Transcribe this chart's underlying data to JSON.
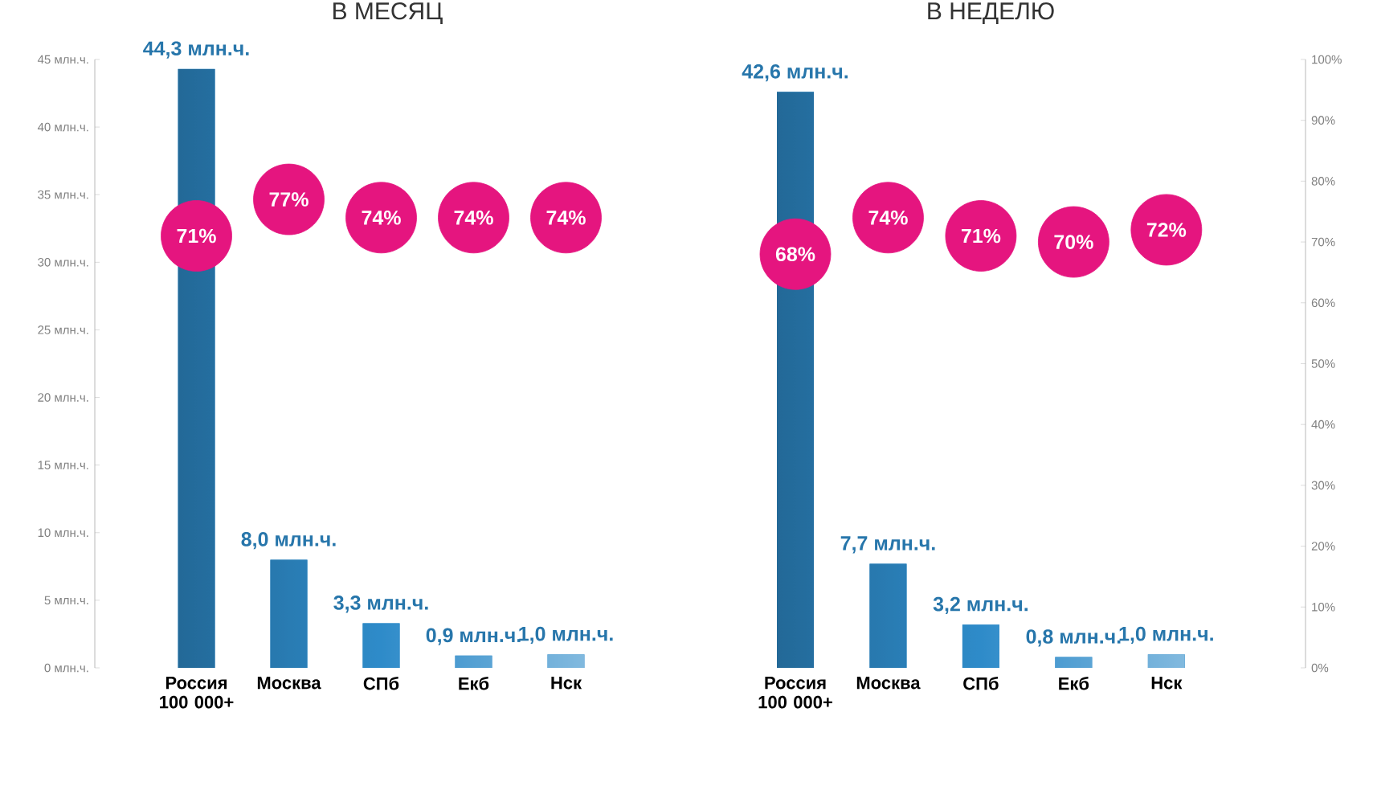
{
  "chart_data": [
    {
      "type": "bar",
      "title": "В МЕСЯЦ",
      "categories": [
        "Россия 100 000+",
        "Москва",
        "СПб",
        "Екб",
        "Нск"
      ],
      "ylim": [
        0,
        45
      ],
      "yticks": [
        {
          "value": 0,
          "label": "0 млн.ч."
        },
        {
          "value": 5,
          "label": "5 млн.ч."
        },
        {
          "value": 10,
          "label": "10 млн.ч."
        },
        {
          "value": 15,
          "label": "15 млн.ч."
        },
        {
          "value": 20,
          "label": "20 млн.ч."
        },
        {
          "value": 25,
          "label": "25 млн.ч."
        },
        {
          "value": 30,
          "label": "30 млн.ч."
        },
        {
          "value": 35,
          "label": "35 млн.ч."
        },
        {
          "value": 40,
          "label": "40 млн.ч."
        },
        {
          "value": 45,
          "label": "45 млн.ч."
        }
      ],
      "y2lim": [
        0,
        100
      ],
      "series": [
        {
          "color": "#2e8bc9",
          "values": [
            44.3,
            8.0,
            3.3,
            0.9,
            1.0
          ],
          "value_labels": [
            "44,3 млн.ч.",
            "8,0 млн.ч.",
            "3,3 млн.ч.",
            "0,9 млн.ч.",
            "1,0 млн.ч."
          ]
        },
        {
          "type": "scatter",
          "axis": "y2",
          "marker": "circle",
          "color": "#e5157f",
          "values": [
            71,
            77,
            74,
            74,
            74
          ],
          "value_labels": [
            "71%",
            "77%",
            "74%",
            "74%",
            "74%"
          ]
        }
      ]
    },
    {
      "type": "bar",
      "title": "В НЕДЕЛЮ",
      "categories": [
        "Россия 100 000+",
        "Москва",
        "СПб",
        "Екб",
        "Нск"
      ],
      "ylim": [
        0,
        45
      ],
      "y2lim": [
        0,
        100
      ],
      "y2ticks": [
        {
          "value": 0,
          "label": "0%"
        },
        {
          "value": 10,
          "label": "10%"
        },
        {
          "value": 20,
          "label": "20%"
        },
        {
          "value": 30,
          "label": "30%"
        },
        {
          "value": 40,
          "label": "40%"
        },
        {
          "value": 50,
          "label": "50%"
        },
        {
          "value": 60,
          "label": "60%"
        },
        {
          "value": 70,
          "label": "70%"
        },
        {
          "value": 80,
          "label": "80%"
        },
        {
          "value": 90,
          "label": "90%"
        },
        {
          "value": 100,
          "label": "100%"
        }
      ],
      "series": [
        {
          "color": "#2e8bc9",
          "values": [
            42.6,
            7.7,
            3.2,
            0.8,
            1.0
          ],
          "value_labels": [
            "42,6 млн.ч.",
            "7,7 млн.ч.",
            "3,2 млн.ч.",
            "0,8 млн.ч.",
            "1,0 млн.ч."
          ]
        },
        {
          "type": "scatter",
          "axis": "y2",
          "marker": "circle",
          "color": "#e5157f",
          "values": [
            68,
            74,
            71,
            70,
            72
          ],
          "value_labels": [
            "68%",
            "74%",
            "71%",
            "70%",
            "72%"
          ]
        }
      ]
    }
  ]
}
